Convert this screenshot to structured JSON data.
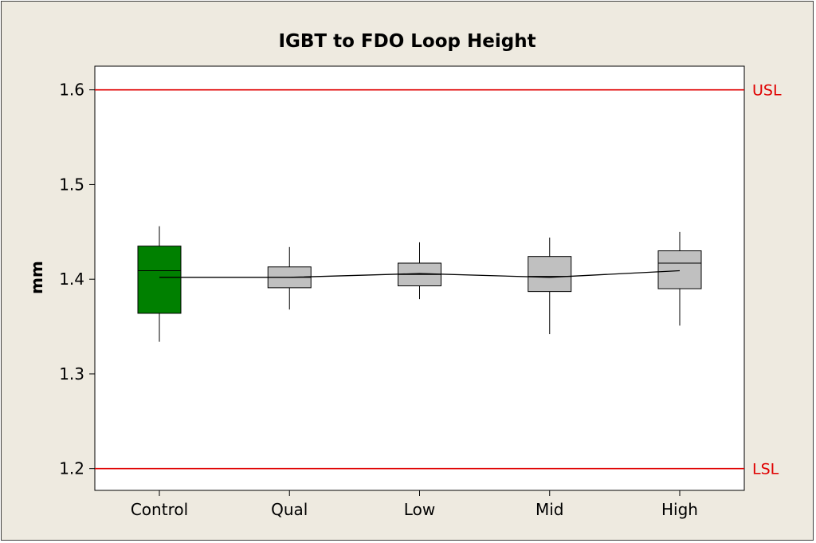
{
  "chart_data": {
    "type": "boxplot",
    "title": "IGBT to FDO Loop Height",
    "xlabel": "",
    "ylabel": "mm",
    "ylim": [
      1.177,
      1.625
    ],
    "yticks": [
      1.2,
      1.3,
      1.4,
      1.5,
      1.6
    ],
    "ytick_labels": [
      "1.2",
      "1.3",
      "1.4",
      "1.5",
      "1.6"
    ],
    "categories": [
      "Control",
      "Qual",
      "Low",
      "Mid",
      "High"
    ],
    "boxes": [
      {
        "category": "Control",
        "min": 1.334,
        "q1": 1.364,
        "median": 1.409,
        "q3": 1.435,
        "max": 1.456,
        "mean": 1.402,
        "fill": "#008000"
      },
      {
        "category": "Qual",
        "min": 1.368,
        "q1": 1.391,
        "median": 1.402,
        "q3": 1.413,
        "max": 1.434,
        "mean": 1.402,
        "fill": "#c0c0c0"
      },
      {
        "category": "Low",
        "min": 1.379,
        "q1": 1.393,
        "median": 1.405,
        "q3": 1.417,
        "max": 1.439,
        "mean": 1.406,
        "fill": "#c0c0c0"
      },
      {
        "category": "Mid",
        "min": 1.342,
        "q1": 1.387,
        "median": 1.403,
        "q3": 1.424,
        "max": 1.444,
        "mean": 1.402,
        "fill": "#c0c0c0"
      },
      {
        "category": "High",
        "min": 1.351,
        "q1": 1.39,
        "median": 1.417,
        "q3": 1.43,
        "max": 1.45,
        "mean": 1.409,
        "fill": "#c0c0c0"
      }
    ],
    "mean_connect_line": true,
    "reference_lines": [
      {
        "label": "USL",
        "value": 1.6,
        "color": "#e00000"
      },
      {
        "label": "LSL",
        "value": 1.2,
        "color": "#e00000"
      }
    ],
    "grid": false,
    "colors": {
      "plot_background": "#ffffff",
      "frame_background": "#eeeae0",
      "box_edge": "#000000"
    }
  }
}
